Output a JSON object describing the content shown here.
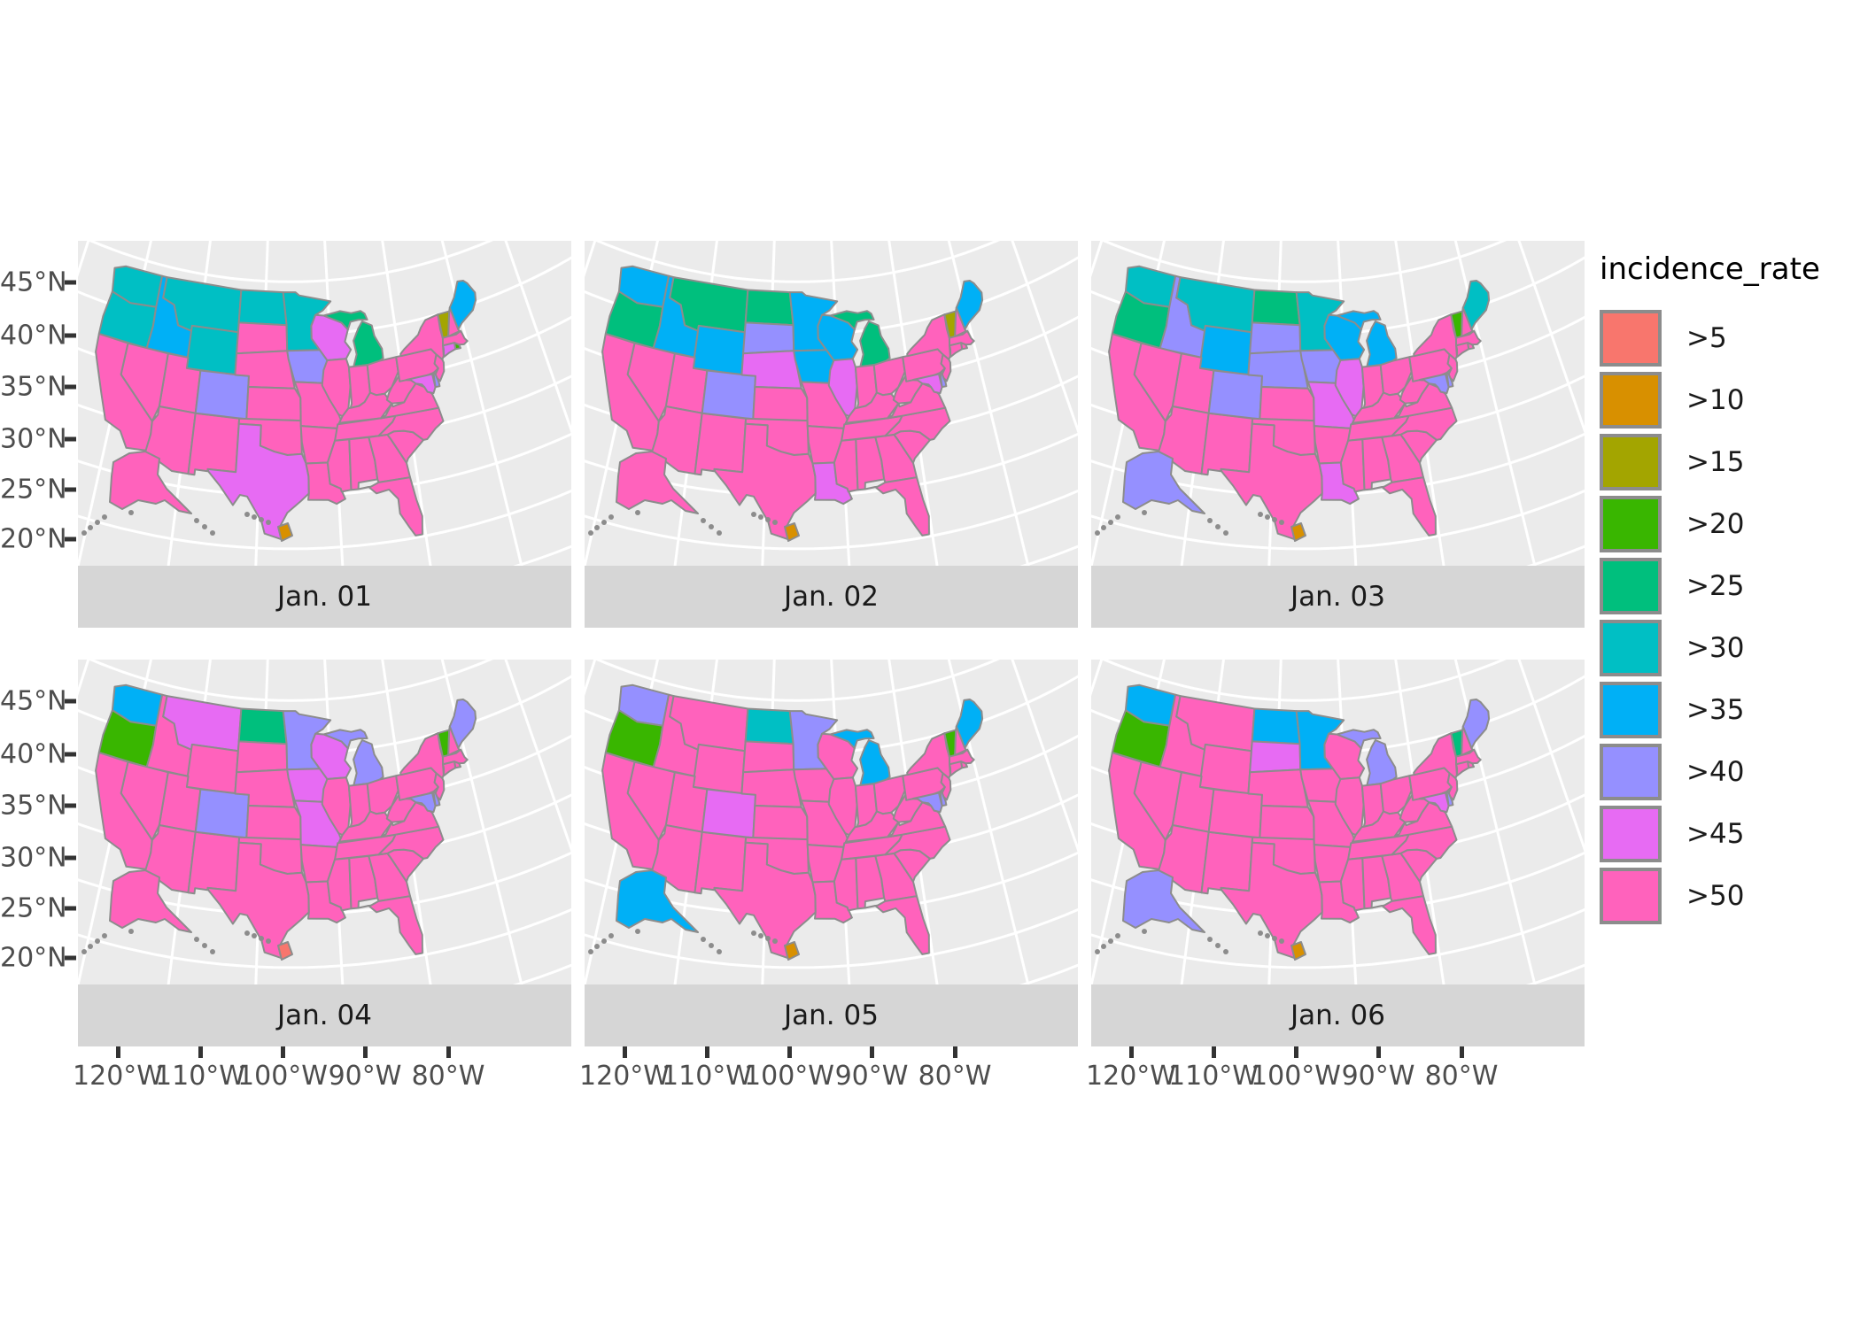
{
  "figure": {
    "background": "#FFFFFF",
    "panel_background": "#EBEBEB",
    "strip_background": "#D6D6D6",
    "graticule_color": "#FFFFFF",
    "state_border_color": "#8C8C8C"
  },
  "legend": {
    "title": "incidence_rate",
    "items": [
      {
        "label": ">5",
        "color": "#F8766D"
      },
      {
        "label": ">10",
        "color": "#D89000"
      },
      {
        "label": ">15",
        "color": "#A3A500"
      },
      {
        "label": ">20",
        "color": "#39B600"
      },
      {
        "label": ">25",
        "color": "#00BF7D"
      },
      {
        "label": ">30",
        "color": "#00BFC4"
      },
      {
        "label": ">35",
        "color": "#00B0F6"
      },
      {
        "label": ">40",
        "color": "#9590FF"
      },
      {
        "label": ">45",
        "color": "#E76BF3"
      },
      {
        "label": ">50",
        "color": "#FF62BC"
      }
    ]
  },
  "axes": {
    "x_tick_labels": [
      "120°W",
      "110°W",
      "100°W",
      "90°W",
      "80°W"
    ],
    "y_tick_labels": [
      "45°N",
      "40°N",
      "35°N",
      "30°N",
      "25°N",
      "20°N"
    ]
  },
  "chart_data": {
    "type": "choropleth",
    "legend_title": "incidence_rate",
    "categories": [
      ">5",
      ">10",
      ">15",
      ">20",
      ">25",
      ">30",
      ">35",
      ">40",
      ">45",
      ">50"
    ],
    "category_colors": {
      ">5": "#F8766D",
      ">10": "#D89000",
      ">15": "#A3A500",
      ">20": "#39B600",
      ">25": "#00BF7D",
      ">30": "#00BFC4",
      ">35": "#00B0F6",
      ">40": "#9590FF",
      ">45": "#E76BF3",
      ">50": "#FF62BC"
    },
    "default_category": ">50",
    "x_axis_ticks": [
      "120°W",
      "110°W",
      "100°W",
      "90°W",
      "80°W"
    ],
    "y_axis_ticks": [
      "45°N",
      "40°N",
      "35°N",
      "30°N",
      "25°N",
      "20°N"
    ],
    "facets": [
      {
        "label": "Jan. 01",
        "states": {
          "WA": ">30",
          "OR": ">30",
          "MT": ">30",
          "WY": ">30",
          "ND": ">30",
          "MN": ">30",
          "ID": ">35",
          "ME": ">35",
          "MI": ">25",
          "WI": ">45",
          "TX": ">45",
          "MD": ">45",
          "CT": ">45",
          "IA": ">40",
          "CO": ">40",
          "DE": ">40",
          "VT": ">15",
          "HI": ">10",
          "RI": ">20"
        }
      },
      {
        "label": "Jan. 02",
        "states": {
          "WA": ">35",
          "ID": ">35",
          "WY": ">35",
          "MN": ">35",
          "IA": ">35",
          "WI": ">35",
          "ME": ">35",
          "OR": ">25",
          "MT": ">25",
          "ND": ">25",
          "MI": ">25",
          "SD": ">40",
          "CO": ">40",
          "DE": ">40",
          "NE": ">45",
          "IL": ">45",
          "LA": ">45",
          "MD": ">45",
          "VT": ">15",
          "HI": ">10"
        }
      },
      {
        "label": "Jan. 03",
        "states": {
          "WA": ">30",
          "MT": ">30",
          "MN": ">30",
          "ME": ">30",
          "OR": ">25",
          "ND": ">25",
          "VT": ">20",
          "ID": ">40",
          "SD": ">40",
          "NE": ">40",
          "IA": ">40",
          "CO": ">40",
          "AK": ">40",
          "MD": ">40",
          "DE": ">40",
          "WY": ">35",
          "WI": ">35",
          "MI": ">35",
          "IL": ">45",
          "MO": ">45",
          "LA": ">45",
          "HI": ">10"
        }
      },
      {
        "label": "Jan. 04",
        "states": {
          "WA": ">35",
          "OR": ">20",
          "VT": ">20",
          "MT": ">45",
          "WI": ">45",
          "IA": ">45",
          "MO": ">45",
          "ND": ">25",
          "MN": ">40",
          "MI": ">40",
          "CO": ">40",
          "ME": ">40",
          "MD": ">40",
          "DE": ">40",
          "HI": ">5"
        }
      },
      {
        "label": "Jan. 05",
        "states": {
          "WA": ">40",
          "MN": ">40",
          "MD": ">40",
          "DE": ">40",
          "OR": ">20",
          "VT": ">20",
          "ND": ">30",
          "MI": ">35",
          "AK": ">35",
          "ME": ">35",
          "CO": ">45",
          "HI": ">10"
        }
      },
      {
        "label": "Jan. 06",
        "states": {
          "WA": ">35",
          "ND": ">35",
          "MN": ">35",
          "OR": ">20",
          "SD": ">45",
          "MD": ">45",
          "MI": ">40",
          "AK": ">40",
          "ME": ">40",
          "DE": ">40",
          "VT": ">25",
          "HI": ">10"
        }
      }
    ]
  }
}
